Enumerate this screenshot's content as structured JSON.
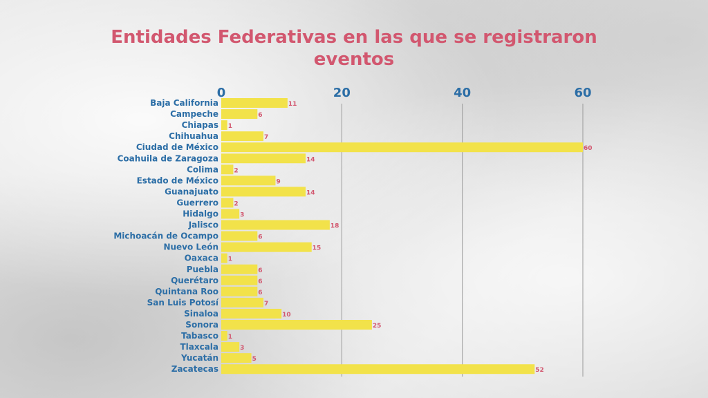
{
  "chart_data": {
    "type": "bar",
    "orientation": "horizontal",
    "title": "Entidades Federativas en las que se  registraron",
    "title_line2": "eventos",
    "xlabel": "",
    "ylabel": "",
    "xlim": [
      0,
      60
    ],
    "ticks": [
      0,
      20,
      40,
      60
    ],
    "tick_labels": [
      "0",
      "20",
      "40",
      "60"
    ],
    "axis_position": "top",
    "grid": true,
    "bar_color": "#f2e24a",
    "label_color": "#2c6ea6",
    "value_color": "#d2576f",
    "title_color": "#d2576f",
    "categories": [
      "Baja California",
      "Campeche",
      "Chiapas",
      "Chihuahua",
      "Ciudad de México",
      "Coahuila de Zaragoza",
      "Colima",
      "Estado de México",
      "Guanajuato",
      "Guerrero",
      "Hidalgo",
      "Jalisco",
      "Michoacán de Ocampo",
      "Nuevo León",
      "Oaxaca",
      "Puebla",
      "Querétaro",
      "Quintana Roo",
      "San Luis Potosí",
      "Sinaloa",
      "Sonora",
      "Tabasco",
      "Tlaxcala",
      "Yucatán",
      "Zacatecas"
    ],
    "values": [
      11,
      6,
      1,
      7,
      60,
      14,
      2,
      9,
      14,
      2,
      3,
      18,
      6,
      15,
      1,
      6,
      6,
      6,
      7,
      10,
      25,
      1,
      3,
      5,
      52
    ]
  }
}
